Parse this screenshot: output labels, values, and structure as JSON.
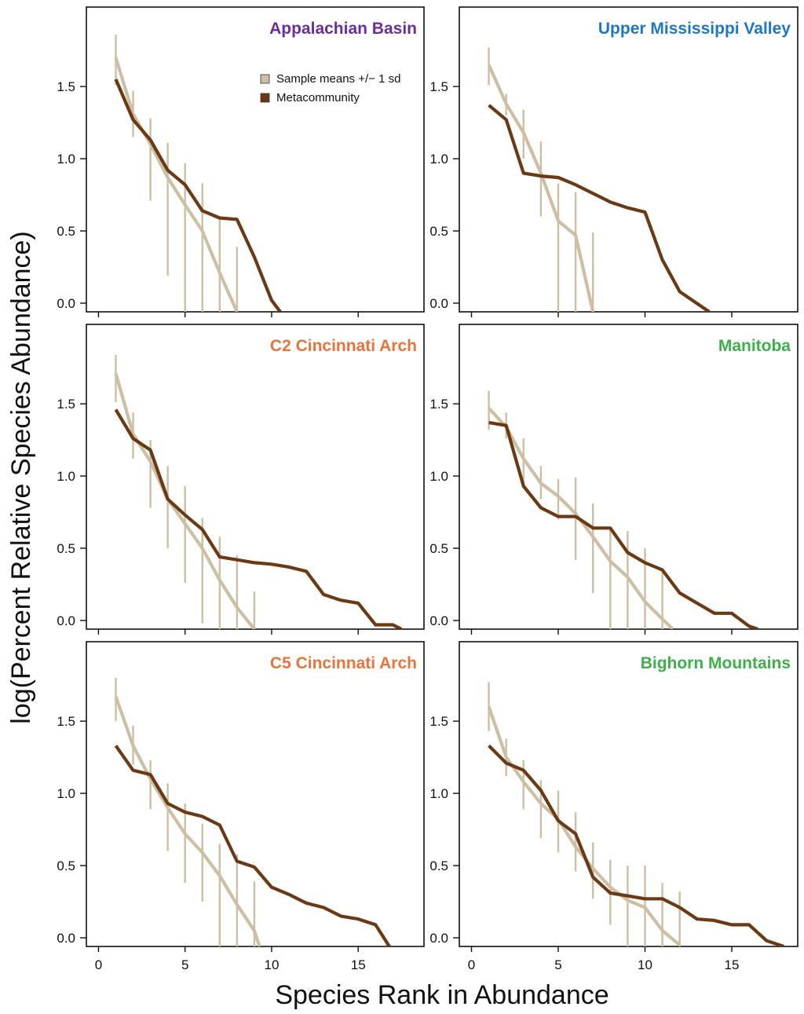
{
  "figure": {
    "xlabel": "Species Rank in Abundance",
    "ylabel": "log(Percent Relative Species Abundance)",
    "colors": {
      "sample": "#cdbfa3",
      "meta": "#6b3a14"
    },
    "legend": {
      "panel": 0,
      "entries": [
        {
          "label": "Sample means +/− 1 sd",
          "series": "sample"
        },
        {
          "label": "Metacommunity",
          "series": "meta"
        }
      ]
    }
  },
  "chart_data": [
    {
      "type": "line",
      "title": "Appalachian Basin",
      "title_color": "#6b2d9a",
      "xlim": [
        -0.7,
        18.8
      ],
      "ylim": [
        -0.06,
        2.05
      ],
      "xticks": [
        0,
        5,
        10,
        15
      ],
      "show_xtick_labels": false,
      "yticks": [
        0.0,
        0.5,
        1.0,
        1.5
      ],
      "sample": {
        "x": [
          1,
          2,
          3,
          4,
          5,
          6,
          7,
          8
        ],
        "mean": [
          1.7,
          1.31,
          1.1,
          0.87,
          0.68,
          0.5,
          0.21,
          -0.06
        ],
        "lower": [
          1.51,
          1.15,
          0.71,
          0.19,
          -0.06,
          -0.06,
          -0.06,
          -0.06
        ],
        "upper": [
          1.86,
          1.47,
          1.28,
          1.11,
          0.97,
          0.83,
          0.6,
          0.39
        ]
      },
      "meta": {
        "x": [
          1,
          2,
          3,
          4,
          5,
          6,
          7,
          8,
          9,
          10,
          10.5
        ],
        "y": [
          1.55,
          1.27,
          1.13,
          0.92,
          0.82,
          0.64,
          0.59,
          0.58,
          0.32,
          0.02,
          -0.06
        ]
      }
    },
    {
      "type": "line",
      "title": "Upper Mississippi Valley",
      "title_color": "#1f77c4",
      "xlim": [
        -0.7,
        18.8
      ],
      "ylim": [
        -0.06,
        2.05
      ],
      "xticks": [
        0,
        5,
        10,
        15
      ],
      "show_xtick_labels": false,
      "yticks": [
        0.0,
        0.5,
        1.0,
        1.5
      ],
      "sample": {
        "x": [
          1,
          2,
          3,
          4,
          5,
          6,
          7
        ],
        "mean": [
          1.65,
          1.38,
          1.18,
          0.9,
          0.57,
          0.47,
          -0.06
        ],
        "lower": [
          1.51,
          1.3,
          1.0,
          0.6,
          -0.06,
          -0.06,
          -0.06
        ],
        "upper": [
          1.77,
          1.45,
          1.34,
          1.12,
          0.83,
          0.77,
          0.49
        ]
      },
      "meta": {
        "x": [
          1,
          2,
          3,
          4,
          5,
          6,
          7,
          8,
          9,
          10,
          11,
          12,
          13.7
        ],
        "y": [
          1.37,
          1.27,
          0.9,
          0.88,
          0.87,
          0.82,
          0.76,
          0.7,
          0.66,
          0.63,
          0.3,
          0.08,
          -0.06
        ]
      }
    },
    {
      "type": "line",
      "title": "C2 Cincinnati Arch",
      "title_color": "#e8743a",
      "xlim": [
        -0.7,
        18.8
      ],
      "ylim": [
        -0.06,
        2.05
      ],
      "xticks": [
        0,
        5,
        10,
        15
      ],
      "show_xtick_labels": false,
      "yticks": [
        0.0,
        0.5,
        1.0,
        1.5
      ],
      "sample": {
        "x": [
          1,
          2,
          3,
          4,
          5,
          6,
          7,
          8,
          9
        ],
        "mean": [
          1.71,
          1.29,
          1.1,
          0.84,
          0.67,
          0.5,
          0.28,
          0.09,
          -0.06
        ],
        "lower": [
          1.51,
          1.12,
          0.78,
          0.5,
          0.26,
          -0.02,
          -0.06,
          -0.06,
          -0.06
        ],
        "upper": [
          1.84,
          1.44,
          1.25,
          1.07,
          0.93,
          0.71,
          0.58,
          0.45,
          0.2
        ]
      },
      "meta": {
        "x": [
          1,
          2,
          3,
          4,
          5,
          6,
          7,
          8,
          9,
          10,
          11,
          12,
          13,
          14,
          15,
          16,
          17,
          17.5
        ],
        "y": [
          1.46,
          1.26,
          1.18,
          0.84,
          0.73,
          0.63,
          0.44,
          0.42,
          0.4,
          0.39,
          0.37,
          0.34,
          0.18,
          0.14,
          0.12,
          -0.03,
          -0.03,
          -0.06
        ]
      }
    },
    {
      "type": "line",
      "title": "Manitoba",
      "title_color": "#3cb04a",
      "xlim": [
        -0.7,
        18.8
      ],
      "ylim": [
        -0.06,
        2.05
      ],
      "xticks": [
        0,
        5,
        10,
        15
      ],
      "show_xtick_labels": false,
      "yticks": [
        0.0,
        0.5,
        1.0,
        1.5
      ],
      "sample": {
        "x": [
          1,
          2,
          3,
          4,
          5,
          6,
          7,
          8,
          9,
          10,
          11,
          11.6
        ],
        "mean": [
          1.47,
          1.34,
          1.12,
          0.95,
          0.86,
          0.74,
          0.58,
          0.41,
          0.3,
          0.13,
          0.01,
          -0.06
        ],
        "lower": [
          1.32,
          1.26,
          0.92,
          0.84,
          0.7,
          0.42,
          0.19,
          -0.06,
          -0.06,
          -0.06,
          -0.06,
          null
        ],
        "upper": [
          1.59,
          1.44,
          1.26,
          1.07,
          0.98,
          0.99,
          0.81,
          0.63,
          0.62,
          0.5,
          0.36,
          null
        ]
      },
      "meta": {
        "x": [
          1,
          2,
          3,
          4,
          5,
          6,
          7,
          8,
          9,
          10,
          11,
          12,
          13,
          14,
          15,
          16,
          16.5
        ],
        "y": [
          1.37,
          1.35,
          0.93,
          0.78,
          0.72,
          0.72,
          0.64,
          0.64,
          0.47,
          0.4,
          0.35,
          0.19,
          0.12,
          0.05,
          0.05,
          -0.04,
          -0.06
        ]
      }
    },
    {
      "type": "line",
      "title": "C5 Cincinnati Arch",
      "title_color": "#e8743a",
      "xlim": [
        -0.7,
        18.8
      ],
      "ylim": [
        -0.06,
        2.05
      ],
      "xticks": [
        0,
        5,
        10,
        15
      ],
      "show_xtick_labels": true,
      "yticks": [
        0.0,
        0.5,
        1.0,
        1.5
      ],
      "sample": {
        "x": [
          1,
          2,
          3,
          4,
          5,
          6,
          7,
          8,
          9,
          9.3
        ],
        "mean": [
          1.67,
          1.33,
          1.1,
          0.9,
          0.72,
          0.59,
          0.43,
          0.23,
          0.05,
          -0.06
        ],
        "lower": [
          1.5,
          1.2,
          0.89,
          0.6,
          0.38,
          0.25,
          -0.06,
          -0.06,
          -0.06,
          null
        ],
        "upper": [
          1.8,
          1.47,
          1.23,
          1.07,
          0.93,
          0.79,
          0.65,
          0.58,
          0.39,
          null
        ]
      },
      "meta": {
        "x": [
          1,
          2,
          3,
          4,
          5,
          6,
          7,
          8,
          9,
          10,
          11,
          12,
          13,
          14,
          15,
          16,
          16.8
        ],
        "y": [
          1.33,
          1.16,
          1.13,
          0.93,
          0.87,
          0.84,
          0.78,
          0.53,
          0.49,
          0.35,
          0.3,
          0.24,
          0.21,
          0.15,
          0.13,
          0.09,
          -0.06
        ]
      }
    },
    {
      "type": "line",
      "title": "Bighorn Mountains",
      "title_color": "#3cb04a",
      "xlim": [
        -0.7,
        18.8
      ],
      "ylim": [
        -0.06,
        2.05
      ],
      "xticks": [
        0,
        5,
        10,
        15
      ],
      "show_xtick_labels": true,
      "yticks": [
        0.0,
        0.5,
        1.0,
        1.5
      ],
      "sample": {
        "x": [
          1,
          2,
          3,
          4,
          5,
          6,
          7,
          8,
          9,
          10,
          11,
          12
        ],
        "mean": [
          1.6,
          1.25,
          1.08,
          0.93,
          0.82,
          0.63,
          0.48,
          0.35,
          0.26,
          0.21,
          0.05,
          -0.05
        ],
        "lower": [
          1.43,
          1.12,
          0.89,
          0.69,
          0.59,
          0.46,
          0.27,
          0.09,
          -0.06,
          -0.06,
          -0.06,
          -0.06
        ],
        "upper": [
          1.77,
          1.38,
          1.23,
          1.09,
          1.02,
          0.87,
          0.66,
          0.54,
          0.5,
          0.5,
          0.38,
          0.32
        ]
      },
      "meta": {
        "x": [
          1,
          2,
          3,
          4,
          5,
          6,
          7,
          8,
          9,
          10,
          11,
          12,
          13,
          14,
          15,
          16,
          17,
          18
        ],
        "y": [
          1.33,
          1.21,
          1.16,
          1.02,
          0.81,
          0.72,
          0.42,
          0.31,
          0.29,
          0.27,
          0.27,
          0.21,
          0.13,
          0.12,
          0.09,
          0.09,
          -0.02,
          -0.06
        ]
      }
    }
  ]
}
